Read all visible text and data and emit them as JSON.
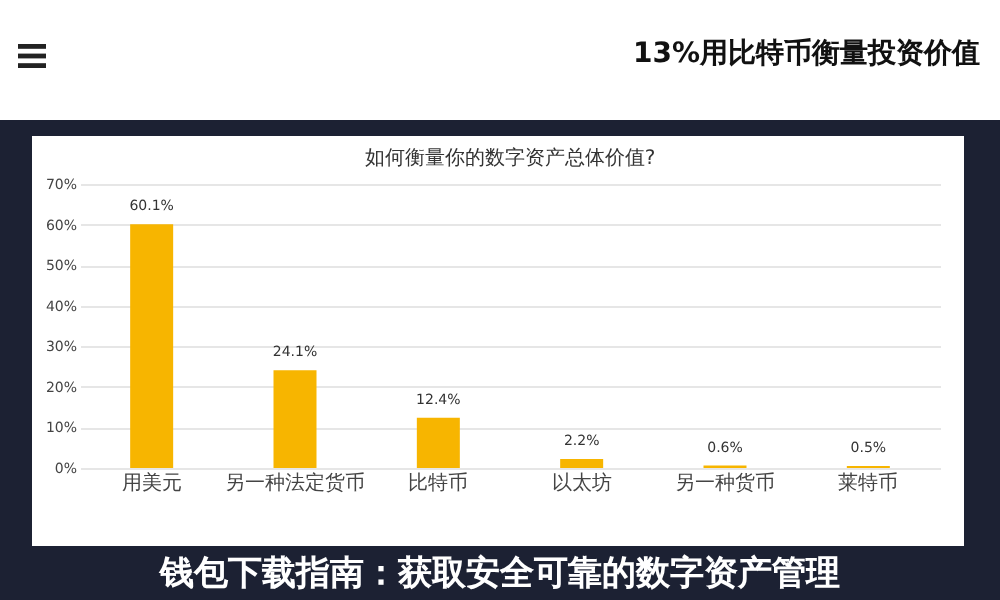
{
  "chart_data": {
    "type": "bar",
    "title": "13%用比特币衡量投资价值",
    "subtitle": "如何衡量你的数字资产总体价值?",
    "categories": [
      "用美元",
      "另一种法定货币",
      "比特币",
      "以太坊",
      "另一种货币",
      "莱特币"
    ],
    "values": [
      60.1,
      24.1,
      12.4,
      2.2,
      0.6,
      0.5
    ],
    "value_labels": [
      "60.1%",
      "24.1%",
      "12.4%",
      "2.2%",
      "0.6%",
      "0.5%"
    ],
    "color": "#f7b500",
    "ylim": [
      0,
      70
    ],
    "yticks": [
      {
        "value": 0,
        "label": "0%"
      },
      {
        "value": 10,
        "label": "10%"
      },
      {
        "value": 20,
        "label": "20%"
      },
      {
        "value": 30,
        "label": "30%"
      },
      {
        "value": 40,
        "label": "40%"
      },
      {
        "value": 50,
        "label": "50%"
      },
      {
        "value": 60,
        "label": "60%"
      },
      {
        "value": 70,
        "label": "70%"
      }
    ],
    "grid": "y",
    "annotations": [
      "钱包下载指南：获取安全可靠的数字资产管理"
    ]
  }
}
